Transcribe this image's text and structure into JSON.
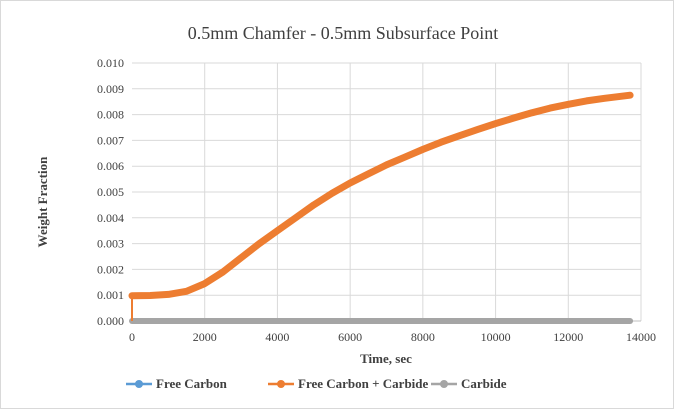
{
  "chart_data": {
    "type": "line",
    "title": "0.5mm Chamfer - 0.5mm Subsurface Point",
    "xlabel": "Time, sec",
    "ylabel": "Weight Fraction",
    "xlim": [
      0,
      14000
    ],
    "ylim": [
      0,
      0.01
    ],
    "x_ticks": [
      0,
      2000,
      4000,
      6000,
      8000,
      10000,
      12000,
      14000
    ],
    "y_ticks": [
      0.0,
      0.001,
      0.002,
      0.003,
      0.004,
      0.005,
      0.006,
      0.007,
      0.008,
      0.009,
      0.01
    ],
    "y_tick_labels": [
      "0.000",
      "0.001",
      "0.002",
      "0.003",
      "0.004",
      "0.005",
      "0.006",
      "0.007",
      "0.008",
      "0.009",
      "0.010"
    ],
    "x_tick_labels": [
      "0",
      "2000",
      "4000",
      "6000",
      "8000",
      "10000",
      "12000",
      "14000"
    ],
    "grid": true,
    "legend_position": "bottom",
    "series": [
      {
        "name": "Free Carbon",
        "color": "#5b9bd5",
        "x": [
          0,
          13700
        ],
        "y": [
          0,
          0
        ]
      },
      {
        "name": "Free Carbon + Carbide",
        "color": "#ed7d31",
        "x": [
          0,
          500,
          1000,
          1500,
          2000,
          2500,
          3000,
          3500,
          4000,
          4500,
          5000,
          5500,
          6000,
          6500,
          7000,
          7500,
          8000,
          8500,
          9000,
          9500,
          10000,
          10500,
          11000,
          11500,
          12000,
          12500,
          13000,
          13700
        ],
        "y": [
          0.00098,
          0.00099,
          0.00103,
          0.00115,
          0.00145,
          0.0019,
          0.00245,
          0.003,
          0.0035,
          0.004,
          0.0045,
          0.00495,
          0.00535,
          0.0057,
          0.00605,
          0.00635,
          0.00665,
          0.00693,
          0.00718,
          0.00742,
          0.00765,
          0.00787,
          0.00807,
          0.00825,
          0.0084,
          0.00853,
          0.00863,
          0.00875
        ]
      },
      {
        "name": "Carbide",
        "color": "#a5a5a5",
        "x": [
          0,
          13700
        ],
        "y": [
          0,
          0
        ]
      }
    ]
  }
}
